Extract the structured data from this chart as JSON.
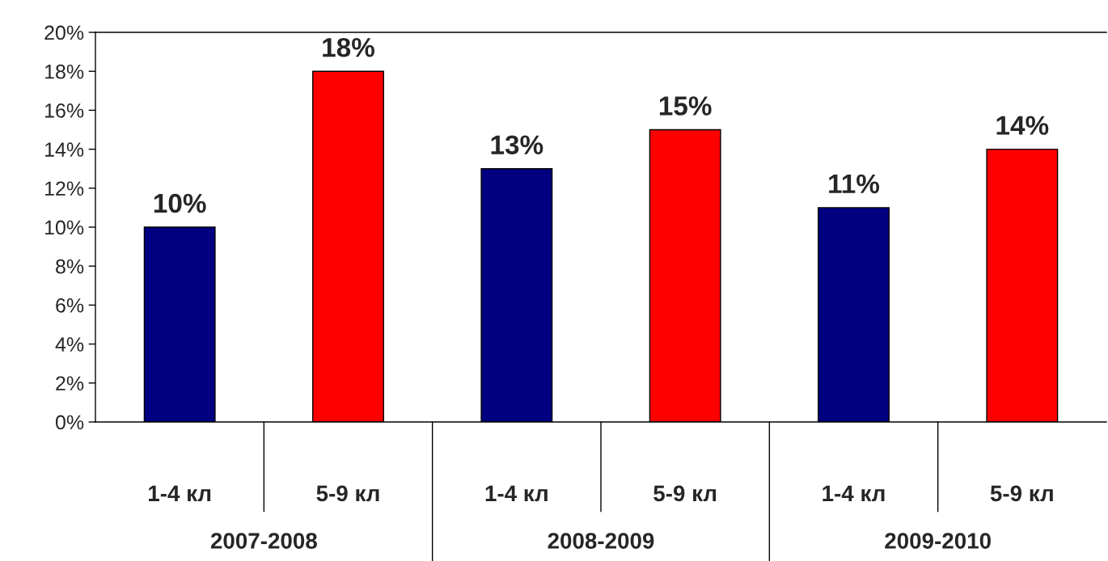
{
  "chart_data": {
    "type": "bar",
    "categories": [
      "1-4 кл",
      "5-9 кл",
      "1-4 кл",
      "5-9 кл",
      "1-4 кл",
      "5-9 кл"
    ],
    "values": [
      10,
      18,
      13,
      15,
      11,
      14
    ],
    "colors": [
      "#000080",
      "#ff0000",
      "#000080",
      "#ff0000",
      "#000080",
      "#ff0000"
    ],
    "value_labels": [
      "10%",
      "18%",
      "13%",
      "15%",
      "11%",
      "14%"
    ],
    "annotations": [
      "2007-2008",
      "2008-2009",
      "2009-2010"
    ],
    "ylim": [
      0,
      20
    ],
    "yticks": [
      {
        "value": 0,
        "label": "0%"
      },
      {
        "value": 2,
        "label": "2%"
      },
      {
        "value": 4,
        "label": "4%"
      },
      {
        "value": 6,
        "label": "6%"
      },
      {
        "value": 8,
        "label": "8%"
      },
      {
        "value": 10,
        "label": "10%"
      },
      {
        "value": 12,
        "label": "12%"
      },
      {
        "value": 14,
        "label": "14%"
      },
      {
        "value": 16,
        "label": "16%"
      },
      {
        "value": 18,
        "label": "18%"
      },
      {
        "value": 20,
        "label": "20%"
      }
    ],
    "grid": false,
    "legend": false
  }
}
